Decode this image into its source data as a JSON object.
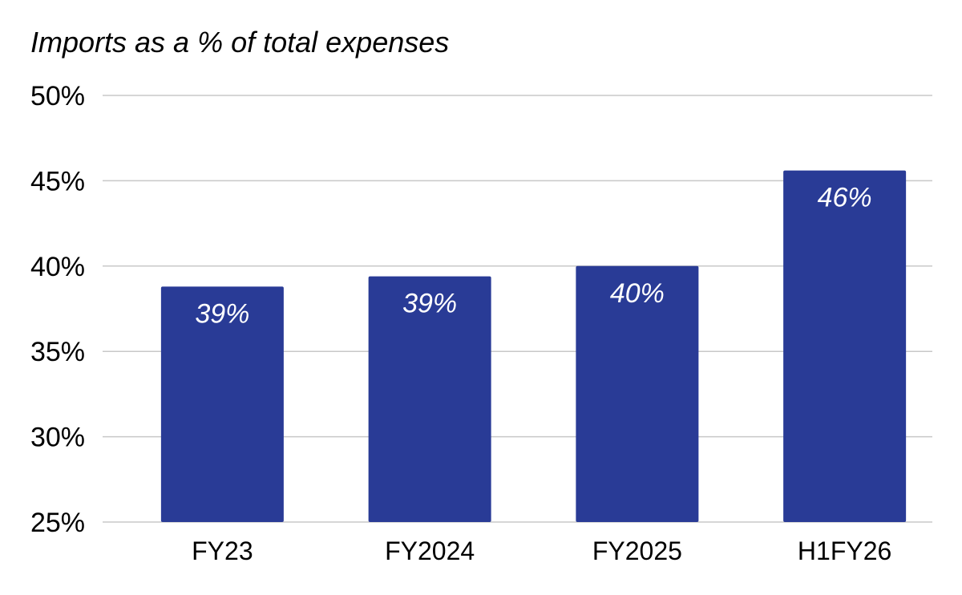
{
  "chart_data": {
    "type": "bar",
    "title": "Imports as a % of total expenses",
    "xlabel": "",
    "ylabel": "",
    "categories": [
      "FY23",
      "FY2024",
      "FY2025",
      "H1FY26"
    ],
    "values": [
      38.8,
      39.4,
      40.0,
      45.6
    ],
    "data_labels": [
      "39%",
      "39%",
      "40%",
      "46%"
    ],
    "ylim": [
      25,
      50
    ],
    "yticks": [
      25,
      30,
      35,
      40,
      45,
      50
    ],
    "ytick_labels": [
      "25%",
      "30%",
      "35%",
      "40%",
      "45%",
      "50%"
    ],
    "grid": true,
    "legend": "none",
    "bar_color": "#293b96",
    "grid_color": "#c8c8c8",
    "label_color": "#ffffff"
  }
}
